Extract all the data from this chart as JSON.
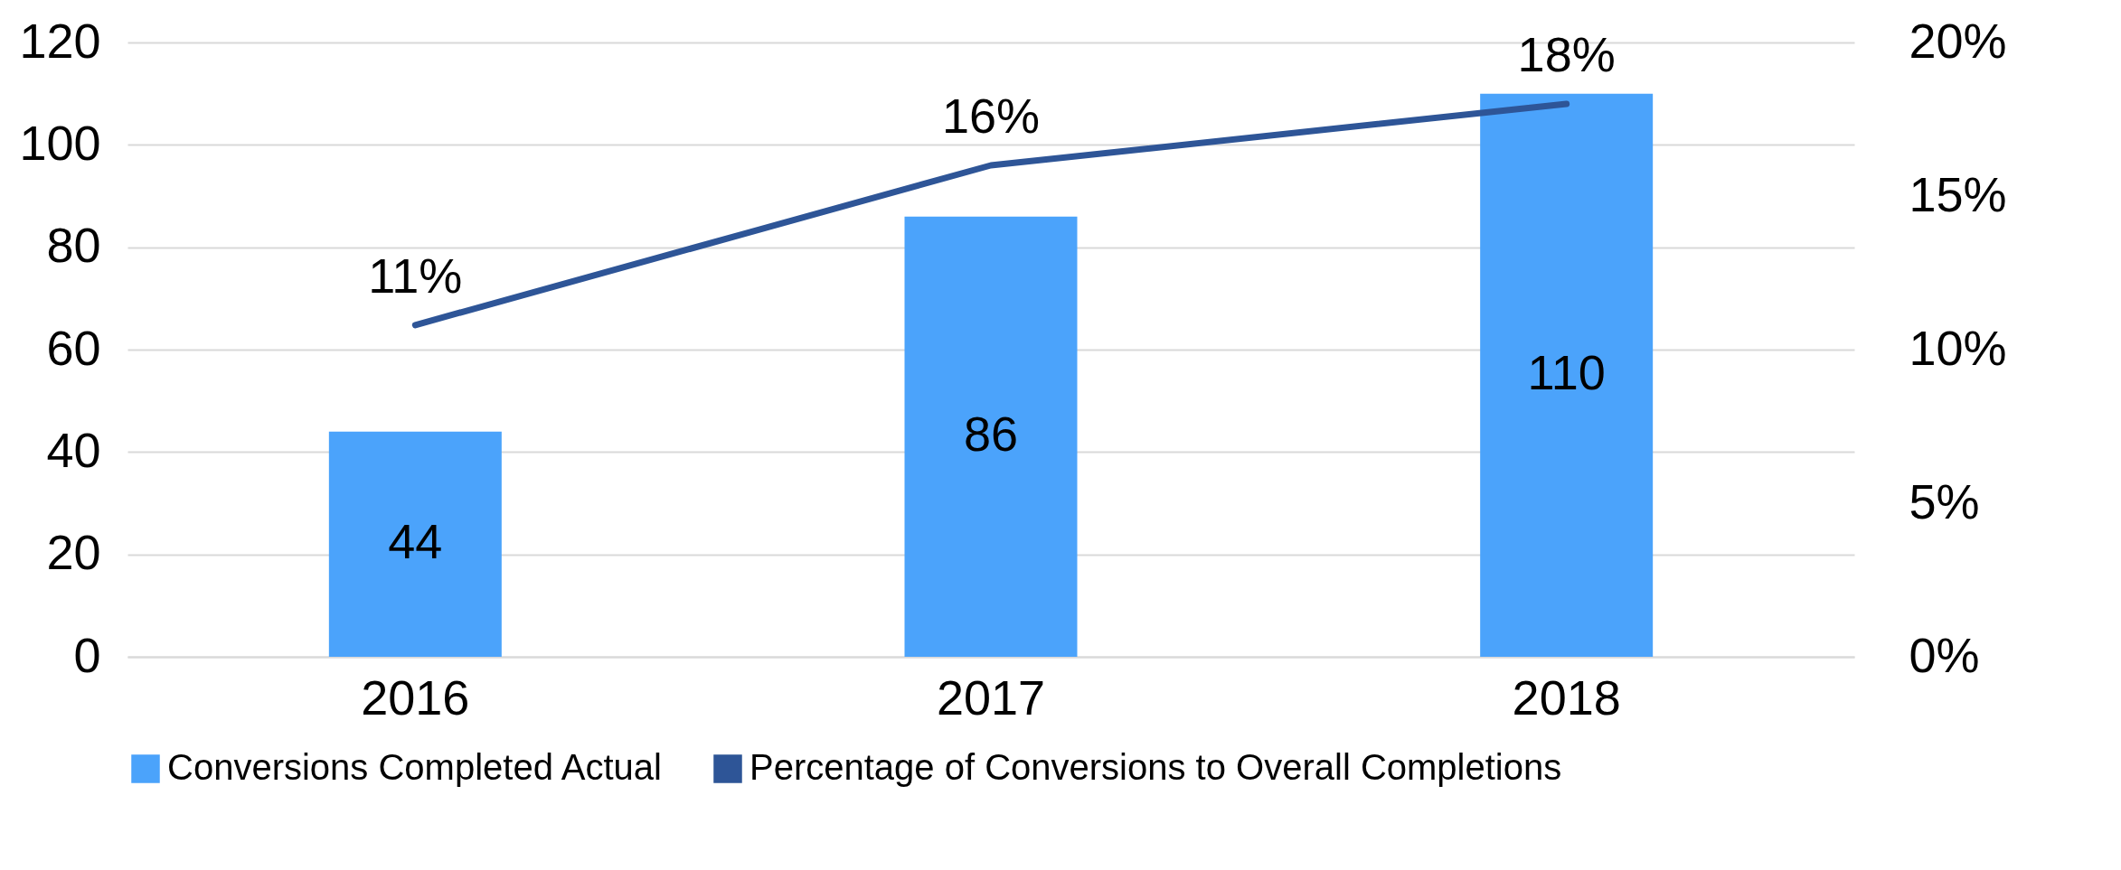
{
  "chart_data": {
    "type": "bar",
    "categories": [
      "2016",
      "2017",
      "2018"
    ],
    "series": [
      {
        "name": "Conversions Completed Actual",
        "color": "#4ba3fb",
        "values": [
          44,
          86,
          110
        ],
        "value_labels": [
          "44",
          "86",
          "110"
        ]
      },
      {
        "name": "Percentage of Conversions to Overall Completions",
        "type": "line",
        "axis": "y2",
        "color": "#2e5597",
        "values": [
          10.8,
          16,
          18
        ],
        "value_labels": [
          "11%",
          "16%",
          "18%"
        ]
      }
    ],
    "ylim": [
      0,
      120
    ],
    "yticks": [
      0,
      20,
      40,
      60,
      80,
      100,
      120
    ],
    "y2lim": [
      0,
      20
    ],
    "y2ticks": [
      {
        "value": 0,
        "label": "0%"
      },
      {
        "value": 5,
        "label": "5%"
      },
      {
        "value": 10,
        "label": "10%"
      },
      {
        "value": 15,
        "label": "15%"
      },
      {
        "value": 20,
        "label": "20%"
      }
    ],
    "grid": "y",
    "legend": "bottom",
    "marker": "none",
    "line_style": "solid"
  }
}
